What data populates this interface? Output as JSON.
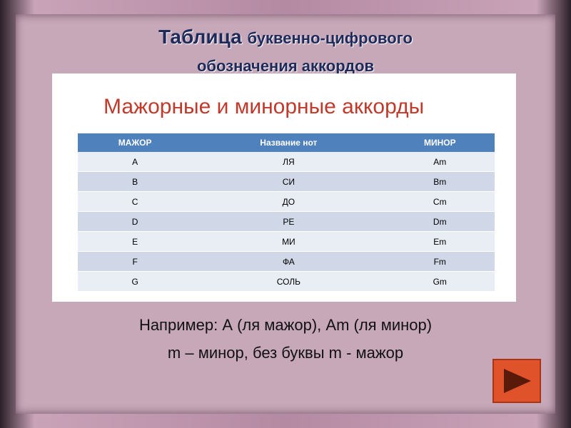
{
  "header": {
    "title_line1_bold": "Таблица",
    "title_line1_rest": "буквенно-цифрового",
    "title_line2": "обозначения аккордов"
  },
  "slide": {
    "subtitle": "Мажорные и минорные аккорды",
    "table": {
      "columns": [
        "МАЖОР",
        "Название нот",
        "МИНОР"
      ],
      "rows": [
        [
          "A",
          "ЛЯ",
          "Am"
        ],
        [
          "B",
          "СИ",
          "Bm"
        ],
        [
          "C",
          "ДО",
          "Cm"
        ],
        [
          "D",
          "РЕ",
          "Dm"
        ],
        [
          "E",
          "МИ",
          "Em"
        ],
        [
          "F",
          "ФА",
          "Fm"
        ],
        [
          "G",
          "СОЛЬ",
          "Gm"
        ]
      ]
    }
  },
  "notes": [
    "Например: А (ля мажор), Am (ля минор)",
    "m – минор, без буквы m - мажор"
  ]
}
